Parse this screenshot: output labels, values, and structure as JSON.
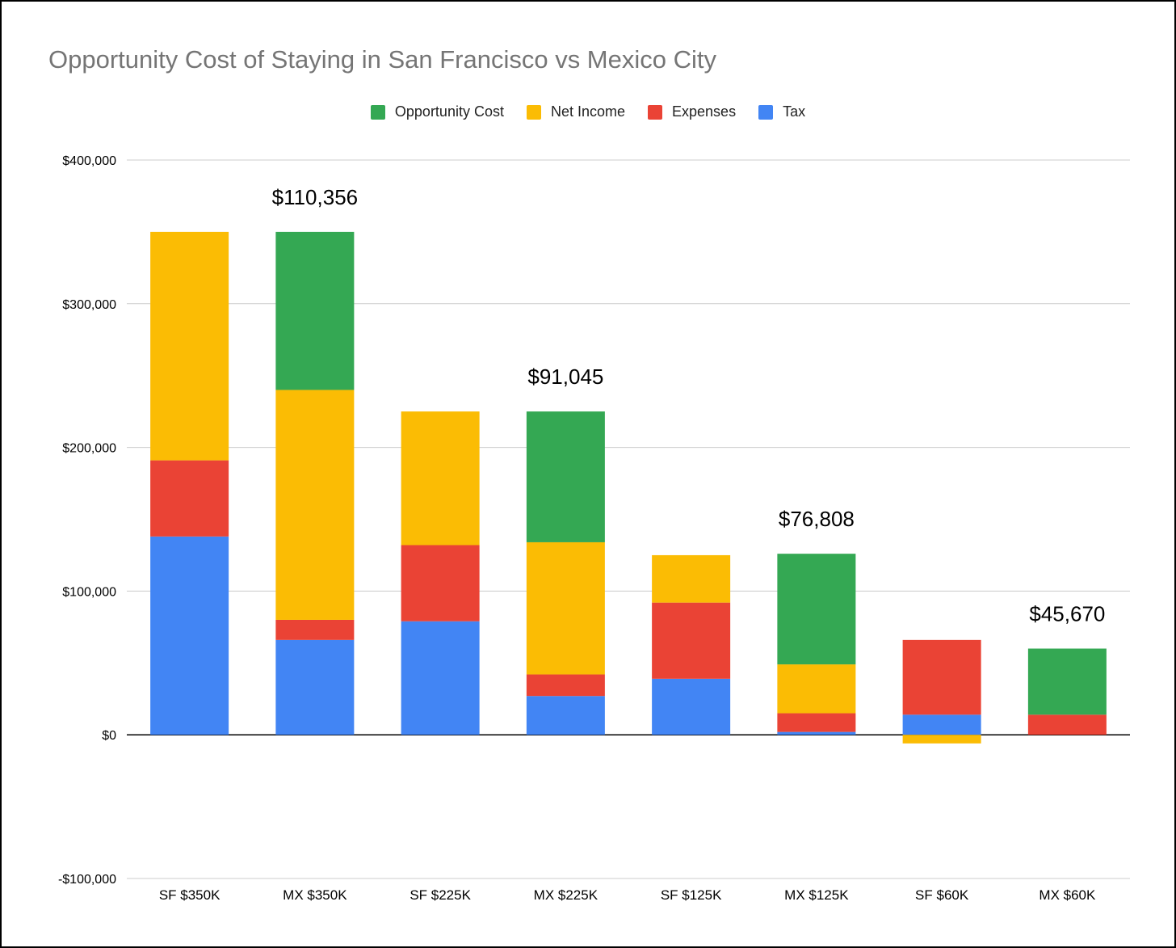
{
  "chart_data": {
    "type": "bar",
    "stacked": true,
    "title": "Opportunity Cost of Staying in San Francisco vs Mexico City",
    "xlabel": "",
    "ylabel": "",
    "ylim": [
      -100000,
      400000
    ],
    "yticks": [
      400000,
      300000,
      200000,
      100000,
      0,
      -100000
    ],
    "ytick_labels": [
      "$400,000",
      "$300,000",
      "$200,000",
      "$100,000",
      "$0",
      "-$100,000"
    ],
    "grid": true,
    "legend_position": "top-center",
    "categories": [
      "SF $350K",
      "MX $350K",
      "SF $225K",
      "MX $225K",
      "SF $125K",
      "MX $125K",
      "SF $60K",
      "MX $60K"
    ],
    "legend_order": [
      "Opportunity Cost",
      "Net Income",
      "Expenses",
      "Tax"
    ],
    "series": [
      {
        "name": "Tax",
        "color": "#4285F4",
        "values": [
          138000,
          66000,
          79000,
          27000,
          39000,
          2000,
          14000,
          0
        ]
      },
      {
        "name": "Expenses",
        "color": "#EA4335",
        "values": [
          53000,
          14000,
          53000,
          15000,
          53000,
          13000,
          52000,
          14000
        ]
      },
      {
        "name": "Net Income",
        "color": "#FBBC04",
        "values": [
          159000,
          160000,
          93000,
          92000,
          33000,
          34000,
          -6000,
          0
        ]
      },
      {
        "name": "Opportunity Cost",
        "color": "#34A853",
        "values": [
          0,
          110000,
          0,
          91000,
          0,
          77000,
          0,
          46000
        ]
      }
    ],
    "annotations": [
      "",
      "$110,356",
      "",
      "$91,045",
      "",
      "$76,808",
      "",
      "$45,670"
    ]
  }
}
